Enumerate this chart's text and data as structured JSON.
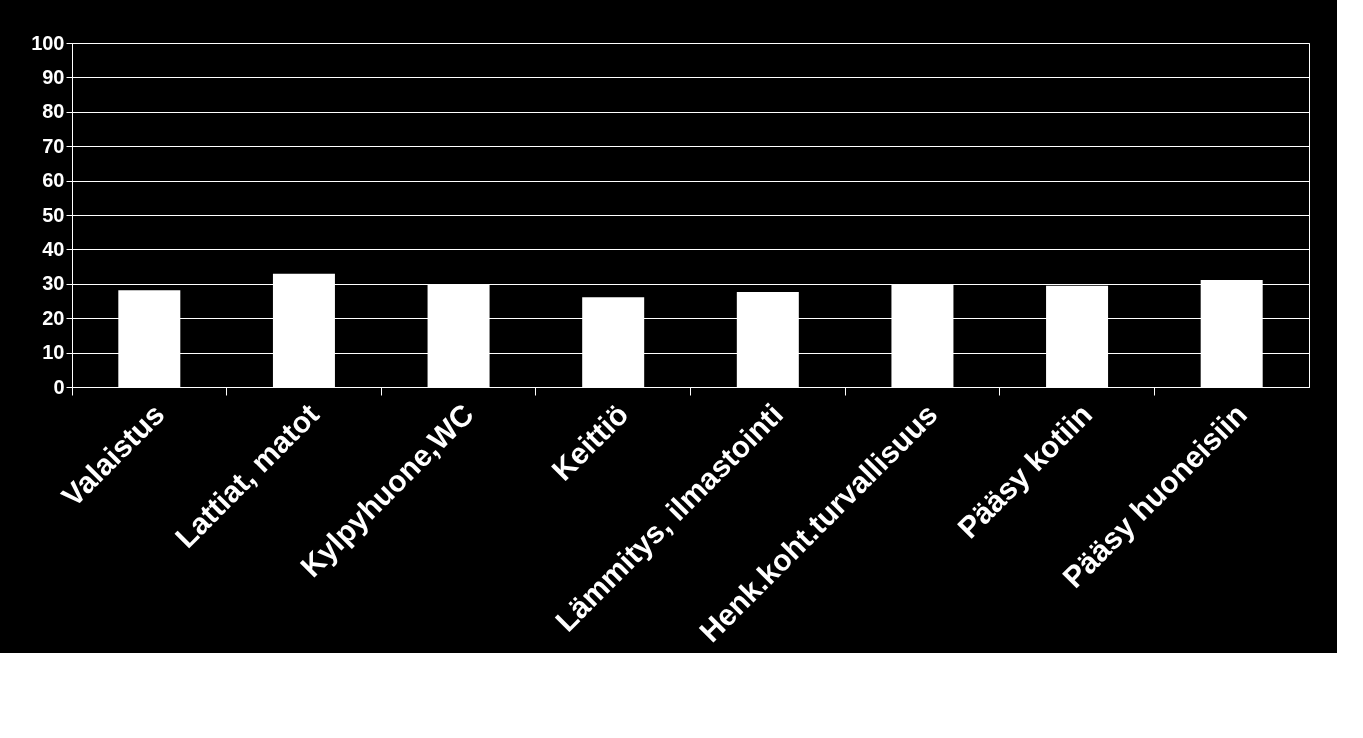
{
  "chart_data": {
    "type": "bar",
    "categories": [
      "Valaistus",
      "Lattiat, matot",
      "Kylpyhuone,WC",
      "Keittiö",
      "Lämmitys, ilmastointi",
      "Henk.koht.turvallisuus",
      "Pääsy kotiin",
      "Pääsy huoneisiin"
    ],
    "values": [
      28.1,
      32.9,
      29.8,
      26.1,
      27.6,
      29.9,
      29.4,
      31.1
    ],
    "color": "#ffffff",
    "ylim": [
      0,
      100
    ],
    "yticks": [
      0,
      10,
      20,
      30,
      40,
      50,
      60,
      70,
      80,
      90,
      100
    ],
    "grid": "y"
  }
}
